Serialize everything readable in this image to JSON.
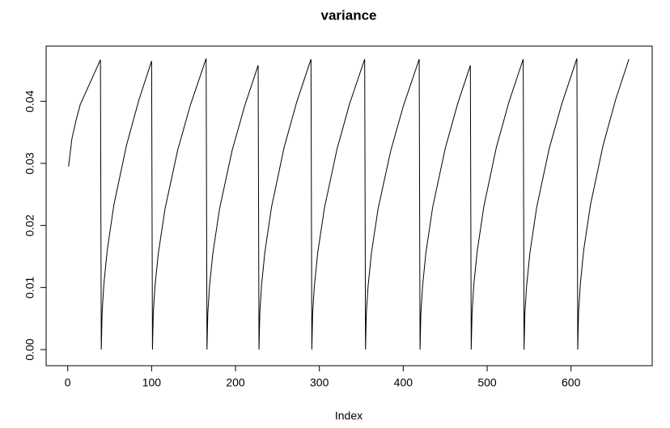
{
  "chart_data": {
    "type": "line",
    "title": "variance",
    "x_label": "Index",
    "x": [
      1,
      5,
      10,
      15,
      20,
      25,
      30,
      35,
      39,
      40,
      41,
      43,
      47,
      55,
      70,
      85,
      100,
      101,
      102,
      104,
      108,
      116,
      131,
      146,
      165,
      166,
      167,
      169,
      173,
      181,
      196,
      211,
      227,
      228,
      229,
      231,
      235,
      243,
      258,
      273,
      290,
      291,
      292,
      294,
      298,
      306,
      321,
      336,
      354,
      355,
      356,
      358,
      362,
      370,
      385,
      400,
      419,
      420,
      421,
      423,
      427,
      435,
      450,
      465,
      480,
      481,
      482,
      484,
      488,
      496,
      511,
      526,
      543,
      544,
      545,
      547,
      551,
      559,
      574,
      589,
      607,
      608,
      609,
      611,
      615,
      623,
      638,
      653,
      669
    ],
    "values": [
      0.0295,
      0.034,
      0.037,
      0.0395,
      0.041,
      0.0425,
      0.044,
      0.0455,
      0.0467,
      0,
      0.006,
      0.0104,
      0.0159,
      0.0233,
      0.0329,
      0.0403,
      0.0465,
      0,
      0.0059,
      0.0102,
      0.0155,
      0.0227,
      0.0321,
      0.0393,
      0.0469,
      0,
      0.0059,
      0.0102,
      0.0155,
      0.0227,
      0.0321,
      0.0393,
      0.0458,
      0,
      0.0059,
      0.0103,
      0.0157,
      0.023,
      0.0326,
      0.0399,
      0.0468,
      0,
      0.0059,
      0.0102,
      0.0156,
      0.0228,
      0.0323,
      0.0396,
      0.0468,
      0,
      0.0059,
      0.0101,
      0.0155,
      0.0227,
      0.032,
      0.0392,
      0.0468,
      0,
      0.0059,
      0.0102,
      0.0156,
      0.0229,
      0.0324,
      0.0397,
      0.0458,
      0,
      0.0059,
      0.0103,
      0.0157,
      0.023,
      0.0326,
      0.0399,
      0.0468,
      0,
      0.0059,
      0.0102,
      0.0156,
      0.0229,
      0.0324,
      0.0396,
      0.0469,
      0,
      0.006,
      0.0104,
      0.0159,
      0.0232,
      0.0328,
      0.0402,
      0.0468
    ],
    "color": "#000000",
    "xlim": [
      -25.76,
      696.76
    ],
    "xticks": [
      0,
      100,
      200,
      300,
      400,
      500,
      600
    ],
    "ylim": [
      -0.0026,
      0.0489
    ],
    "yticks": [
      {
        "value": 0,
        "label": "0.00"
      },
      0.01,
      0.02,
      0.03,
      0.04
    ]
  }
}
